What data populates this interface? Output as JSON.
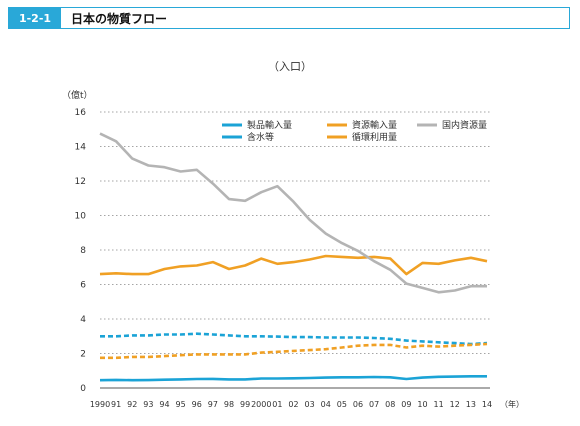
{
  "header": {
    "section_number": "1-2-1",
    "title": "日本の物質フロー"
  },
  "chart_data": {
    "type": "line",
    "title": "（入口）",
    "ylabel": "（億t）",
    "xunit": "（年）",
    "ylim": [
      0,
      16
    ],
    "yticks": [
      0,
      2,
      4,
      6,
      8,
      10,
      12,
      14,
      16
    ],
    "grid": true,
    "legend_position": "top-right",
    "categories": [
      "1990",
      "91",
      "92",
      "93",
      "94",
      "95",
      "96",
      "97",
      "98",
      "99",
      "2000",
      "01",
      "02",
      "03",
      "04",
      "05",
      "06",
      "07",
      "08",
      "09",
      "10",
      "11",
      "12",
      "13",
      "14"
    ],
    "series": [
      {
        "name": "製品輸入量",
        "color": "#1ba3d6",
        "style": "solid",
        "values": [
          0.45,
          0.47,
          0.45,
          0.46,
          0.48,
          0.5,
          0.52,
          0.53,
          0.5,
          0.5,
          0.55,
          0.55,
          0.56,
          0.58,
          0.6,
          0.62,
          0.62,
          0.64,
          0.62,
          0.52,
          0.6,
          0.65,
          0.66,
          0.68,
          0.68
        ]
      },
      {
        "name": "含水等",
        "color": "#1ba3d6",
        "style": "dashed",
        "values": [
          3.0,
          3.0,
          3.05,
          3.05,
          3.1,
          3.1,
          3.15,
          3.1,
          3.05,
          3.0,
          3.0,
          2.98,
          2.95,
          2.95,
          2.93,
          2.93,
          2.93,
          2.9,
          2.85,
          2.75,
          2.7,
          2.65,
          2.6,
          2.55,
          2.6
        ]
      },
      {
        "name": "資源輸入量",
        "color": "#f0a024",
        "style": "solid",
        "values": [
          6.6,
          6.65,
          6.6,
          6.6,
          6.9,
          7.05,
          7.1,
          7.3,
          6.9,
          7.1,
          7.5,
          7.2,
          7.3,
          7.45,
          7.65,
          7.6,
          7.55,
          7.6,
          7.5,
          6.6,
          7.25,
          7.2,
          7.4,
          7.55,
          7.35
        ]
      },
      {
        "name": "循環利用量",
        "color": "#f0a024",
        "style": "dashed",
        "values": [
          1.75,
          1.75,
          1.8,
          1.8,
          1.85,
          1.9,
          1.95,
          1.95,
          1.95,
          1.95,
          2.05,
          2.1,
          2.15,
          2.2,
          2.25,
          2.35,
          2.45,
          2.5,
          2.5,
          2.35,
          2.45,
          2.4,
          2.45,
          2.5,
          2.55
        ]
      },
      {
        "name": "国内資源量",
        "color": "#b4b4b4",
        "style": "solid",
        "values": [
          14.75,
          14.3,
          13.3,
          12.9,
          12.8,
          12.55,
          12.65,
          11.85,
          10.95,
          10.85,
          11.35,
          11.7,
          10.8,
          9.75,
          8.95,
          8.4,
          7.95,
          7.35,
          6.85,
          6.05,
          5.8,
          5.55,
          5.65,
          5.9,
          5.9
        ]
      }
    ]
  }
}
